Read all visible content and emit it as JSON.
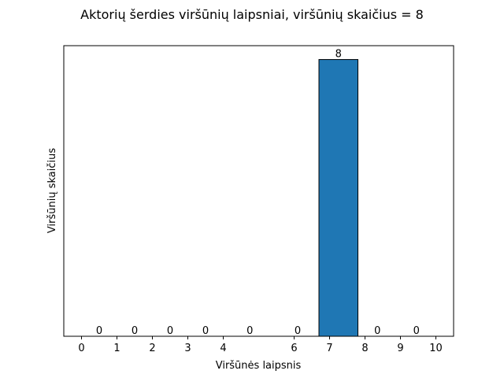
{
  "chart_data": {
    "type": "bar",
    "title": "Aktorių šerdies viršūnių laipsniai, viršūnių skaičius =  8",
    "xlabel": "Viršūnės laipsnis",
    "ylabel": "Viršūnių skaičius",
    "x_ticks": [
      0,
      1,
      2,
      3,
      4,
      6,
      7,
      8,
      9,
      10
    ],
    "xlim": [
      -0.5,
      10.5
    ],
    "ylim": [
      0,
      8.4
    ],
    "bars": [
      {
        "start": 0,
        "end": 1,
        "value": 0,
        "label": "0"
      },
      {
        "start": 1,
        "end": 2,
        "value": 0,
        "label": "0"
      },
      {
        "start": 2,
        "end": 3,
        "value": 0,
        "label": "0"
      },
      {
        "start": 3,
        "end": 4,
        "value": 0,
        "label": "0"
      },
      {
        "start": 4,
        "end": 5.5,
        "value": 0,
        "label": "0"
      },
      {
        "start": 5.5,
        "end": 6.7,
        "value": 0,
        "label": "0"
      },
      {
        "start": 6.7,
        "end": 7.8,
        "value": 8,
        "label": "8"
      },
      {
        "start": 7.8,
        "end": 8.9,
        "value": 0,
        "label": "0"
      },
      {
        "start": 8.9,
        "end": 10,
        "value": 0,
        "label": "0"
      }
    ],
    "bar_color": "#1f77b4",
    "edge_color": "#000000",
    "grid": false,
    "y_ticks_visible": false
  }
}
